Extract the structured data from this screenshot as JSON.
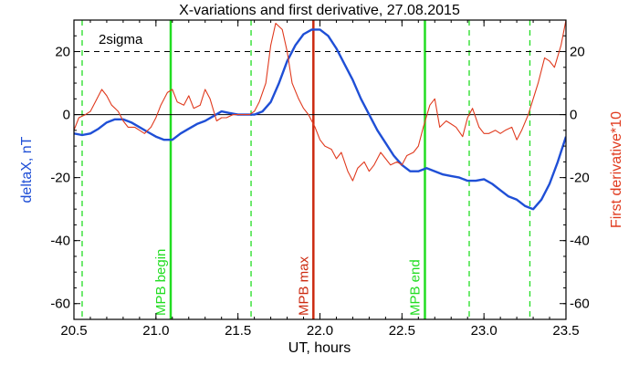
{
  "chart_data": {
    "type": "line",
    "title": "X-variations and first derivative, 27.08.2015",
    "xlabel": "UT, hours",
    "ylabel_left": "deltaX, nT",
    "ylabel_right": "First derivative*10",
    "xlim": [
      20.5,
      23.5
    ],
    "ylim": [
      -65,
      30
    ],
    "x_ticks": [
      "20.5",
      "21.0",
      "21.5",
      "22.0",
      "22.5",
      "23.0",
      "23.5"
    ],
    "y_ticks_left": [
      "20",
      "0",
      "-20",
      "-40",
      "-60"
    ],
    "y_ticks_right": [
      "20",
      "0",
      "-20",
      "-40",
      "-60"
    ],
    "threshold_label": "2sigma",
    "threshold_value": 20,
    "zero_line": 0,
    "colors": {
      "deltaX": "#1f4fd6",
      "derivative": "#e03a1e",
      "mpb_marker": "#22dd22",
      "mpb_max_marker": "#cc2a10",
      "dashed_green": "#22dd22"
    },
    "series": [
      {
        "name": "deltaX, nT",
        "color": "#1f4fd6",
        "axis": "left",
        "x": [
          20.5,
          20.55,
          20.6,
          20.65,
          20.7,
          20.75,
          20.8,
          20.85,
          20.9,
          20.95,
          21.0,
          21.05,
          21.1,
          21.15,
          21.2,
          21.25,
          21.3,
          21.35,
          21.4,
          21.45,
          21.5,
          21.55,
          21.6,
          21.65,
          21.7,
          21.75,
          21.8,
          21.85,
          21.9,
          21.95,
          22.0,
          22.05,
          22.1,
          22.15,
          22.2,
          22.25,
          22.3,
          22.35,
          22.4,
          22.45,
          22.5,
          22.55,
          22.6,
          22.65,
          22.7,
          22.75,
          22.8,
          22.85,
          22.9,
          22.95,
          23.0,
          23.05,
          23.1,
          23.15,
          23.2,
          23.25,
          23.3,
          23.35,
          23.4,
          23.45,
          23.5
        ],
        "y": [
          -6,
          -6.5,
          -6,
          -4.5,
          -2.5,
          -1.5,
          -1.5,
          -2.5,
          -4,
          -5.5,
          -7,
          -8,
          -8,
          -6,
          -4.5,
          -3,
          -2,
          -0.5,
          1,
          0.5,
          0,
          0,
          0,
          1,
          4,
          10,
          17,
          22,
          25.5,
          27,
          27,
          25,
          21,
          16,
          11,
          5,
          0,
          -5,
          -9,
          -13,
          -16,
          -18,
          -18,
          -17,
          -18,
          -19,
          -19.5,
          -20,
          -21,
          -21,
          -20.5,
          -22,
          -24,
          -26,
          -27,
          -29,
          -30,
          -27,
          -22,
          -15,
          -7
        ]
      },
      {
        "name": "First derivative*10",
        "color": "#e03a1e",
        "axis": "right",
        "x": [
          20.5,
          20.53,
          20.57,
          20.6,
          20.63,
          20.67,
          20.7,
          20.73,
          20.77,
          20.8,
          20.83,
          20.87,
          20.9,
          20.93,
          20.97,
          21.0,
          21.03,
          21.07,
          21.1,
          21.13,
          21.17,
          21.2,
          21.23,
          21.27,
          21.3,
          21.33,
          21.37,
          21.4,
          21.43,
          21.47,
          21.5,
          21.53,
          21.57,
          21.6,
          21.63,
          21.67,
          21.7,
          21.73,
          21.77,
          21.8,
          21.83,
          21.87,
          21.9,
          21.93,
          21.97,
          22.0,
          22.03,
          22.07,
          22.1,
          22.13,
          22.17,
          22.2,
          22.23,
          22.27,
          22.3,
          22.33,
          22.37,
          22.4,
          22.43,
          22.47,
          22.5,
          22.53,
          22.57,
          22.6,
          22.63,
          22.67,
          22.7,
          22.73,
          22.77,
          22.8,
          22.83,
          22.87,
          22.9,
          22.93,
          22.97,
          23.0,
          23.03,
          23.07,
          23.1,
          23.13,
          23.17,
          23.2,
          23.23,
          23.27,
          23.3,
          23.33,
          23.37,
          23.4,
          23.43,
          23.47,
          23.5
        ],
        "y": [
          -5,
          -1,
          0,
          1,
          4,
          8,
          6,
          3,
          1,
          -2,
          -4,
          -4,
          -5,
          -6,
          -4,
          -1,
          3,
          7,
          8,
          4,
          3,
          6,
          2,
          3,
          8,
          5,
          -2,
          -1,
          -1,
          0,
          0,
          0,
          0,
          1,
          4,
          10,
          22,
          29,
          27,
          20,
          10,
          5,
          2,
          0,
          -4,
          -8,
          -10,
          -11,
          -14,
          -12,
          -18,
          -21,
          -17,
          -15,
          -18,
          -16,
          -12,
          -14,
          -16,
          -15,
          -16,
          -13,
          -12,
          -10,
          -4,
          3,
          5,
          -4,
          -2,
          -3,
          -4,
          -7,
          -1,
          2,
          -4,
          -6,
          -6,
          -5,
          -6,
          -5,
          -4,
          -8,
          -5,
          0,
          5,
          10,
          18,
          17,
          15,
          22,
          30
        ]
      }
    ],
    "markers": [
      {
        "label": "",
        "x": 20.55,
        "style": "dashed",
        "color": "#22dd22"
      },
      {
        "label": "MPB begin",
        "x": 21.09,
        "style": "solid",
        "color": "#22dd22"
      },
      {
        "label": "",
        "x": 21.58,
        "style": "dashed",
        "color": "#22dd22"
      },
      {
        "label": "MPB max",
        "x": 21.96,
        "style": "solid",
        "color": "#cc2a10"
      },
      {
        "label": "MPB end",
        "x": 22.64,
        "style": "solid",
        "color": "#22dd22"
      },
      {
        "label": "",
        "x": 22.91,
        "style": "dashed",
        "color": "#22dd22"
      },
      {
        "label": "",
        "x": 23.28,
        "style": "dashed",
        "color": "#22dd22"
      }
    ]
  }
}
